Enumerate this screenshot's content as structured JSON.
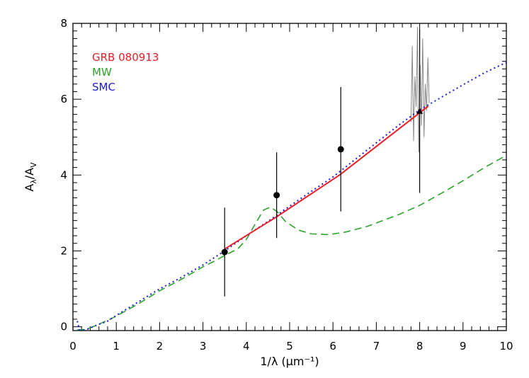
{
  "chart_data": {
    "type": "line",
    "xlabel": "1/λ (μm⁻¹)",
    "ylabel": {
      "main": "A",
      "sub1": "λ",
      "sep": "/A",
      "sub2": "V"
    },
    "xlim": [
      0,
      10
    ],
    "ylim": [
      -0.1,
      8
    ],
    "x_ticks": [
      "0",
      "1",
      "2",
      "3",
      "4",
      "5",
      "6",
      "7",
      "8",
      "9",
      "10"
    ],
    "y_ticks": [
      "0",
      "2",
      "4",
      "6",
      "8"
    ],
    "legend_placement": "top-left",
    "colors": {
      "grb": "#e8202a",
      "mw": "#2aa52a",
      "smc": "#1c1cdc",
      "points": "#000000",
      "spectrum": "#888888"
    },
    "series": [
      {
        "name": "GRB 080913",
        "style": "solid",
        "x": [
          3.5,
          4.7,
          6.15,
          8.2
        ],
        "y": [
          2.05,
          2.9,
          4.0,
          5.82
        ]
      },
      {
        "name": "MW",
        "style": "dashed",
        "x": [
          0.1,
          0.3,
          0.5,
          0.8,
          1.0,
          1.5,
          2.0,
          2.5,
          3.0,
          3.3,
          3.5,
          3.8,
          4.0,
          4.2,
          4.4,
          4.55,
          4.7,
          4.9,
          5.2,
          5.5,
          5.9,
          6.3,
          6.8,
          7.5,
          8.0,
          8.5,
          9.0,
          9.5,
          10.0
        ],
        "y": [
          -0.08,
          -0.07,
          0.02,
          0.17,
          0.28,
          0.6,
          0.95,
          1.25,
          1.58,
          1.75,
          1.88,
          2.05,
          2.3,
          2.7,
          3.08,
          3.15,
          3.05,
          2.78,
          2.55,
          2.45,
          2.43,
          2.5,
          2.65,
          2.95,
          3.2,
          3.52,
          3.85,
          4.2,
          4.52
        ]
      },
      {
        "name": "SMC",
        "style": "dotted",
        "x": [
          0.1,
          0.15,
          0.3,
          0.5,
          0.8,
          1.0,
          1.5,
          2.0,
          2.5,
          3.0,
          3.5,
          4.0,
          4.5,
          5.0,
          5.5,
          6.0,
          6.5,
          7.0,
          7.5,
          8.0,
          8.5,
          9.0,
          9.5,
          10.0
        ],
        "y": [
          0.15,
          -0.08,
          -0.08,
          0.02,
          0.15,
          0.3,
          0.65,
          1.0,
          1.3,
          1.63,
          2.0,
          2.4,
          2.78,
          3.18,
          3.57,
          3.95,
          4.4,
          4.85,
          5.3,
          5.72,
          6.05,
          6.38,
          6.7,
          6.97
        ]
      }
    ],
    "points": {
      "x": [
        3.5,
        4.7,
        6.18,
        8.0
      ],
      "y": [
        1.97,
        3.47,
        4.68,
        5.68
      ],
      "yerr": [
        1.17,
        1.13,
        1.64,
        2.15
      ],
      "markers": [
        "circle",
        "circle",
        "circle",
        "triangle"
      ]
    },
    "spectrum": {
      "x": [
        7.8,
        7.83,
        7.86,
        7.89,
        7.92,
        7.95,
        7.98,
        8.01,
        8.04,
        8.07,
        8.1,
        8.13,
        8.16,
        8.19,
        8.22
      ],
      "y": [
        5.4,
        7.4,
        4.9,
        6.6,
        5.8,
        7.9,
        4.6,
        6.9,
        5.3,
        7.6,
        5.0,
        6.4,
        5.7,
        7.1,
        5.9
      ]
    }
  }
}
